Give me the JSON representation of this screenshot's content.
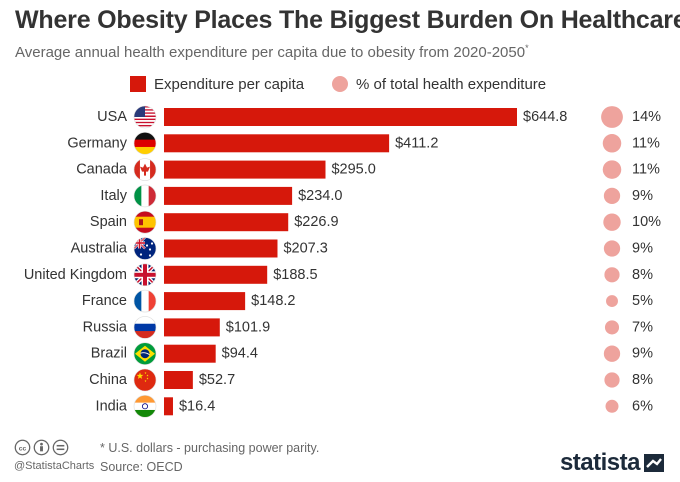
{
  "chart_data": {
    "type": "bar",
    "title": "Where Obesity Places The Biggest Burden On Healthcare",
    "subtitle": "Average annual health expenditure per capita due to obesity from 2020-2050",
    "subtitle_footnote_mark": "*",
    "orientation": "horizontal",
    "legend": [
      {
        "label": "Expenditure per capita",
        "color": "#d6180b"
      },
      {
        "label": "% of total health expenditure",
        "color": "#eea39d"
      }
    ],
    "categories": [
      "USA",
      "Germany",
      "Canada",
      "Italy",
      "Spain",
      "Australia",
      "United Kingdom",
      "France",
      "Russia",
      "Brazil",
      "China",
      "India"
    ],
    "series": [
      {
        "name": "Expenditure per capita",
        "values": [
          644.8,
          411.2,
          295.0,
          234.0,
          226.9,
          207.3,
          188.5,
          148.2,
          101.9,
          94.4,
          52.7,
          16.4
        ]
      },
      {
        "name": "% of total health expenditure",
        "values": [
          14,
          11,
          11,
          9,
          10,
          9,
          8,
          5,
          7,
          9,
          8,
          6
        ]
      }
    ],
    "value_labels": [
      "$644.8",
      "$411.2",
      "$295.0",
      "$234.0",
      "$226.9",
      "$207.3",
      "$188.5",
      "$148.2",
      "$101.9",
      "$94.4",
      "$52.7",
      "$16.4"
    ],
    "pct_labels": [
      "14%",
      "11%",
      "11%",
      "9%",
      "10%",
      "9%",
      "8%",
      "5%",
      "7%",
      "9%",
      "8%",
      "6%"
    ],
    "xlim": [
      0,
      644.8
    ],
    "grid": false
  },
  "footer": {
    "note": "* U.S. dollars - purchasing power parity.",
    "source": "Source: OECD",
    "handle": "@StatistaCharts",
    "brand": "statista"
  },
  "colors": {
    "bar": "#d6180b",
    "bubble": "#eea39d",
    "text": "#333333",
    "muted": "#666666"
  },
  "flags": [
    "usa-flag-icon",
    "germany-flag-icon",
    "canada-flag-icon",
    "italy-flag-icon",
    "spain-flag-icon",
    "australia-flag-icon",
    "uk-flag-icon",
    "france-flag-icon",
    "russia-flag-icon",
    "brazil-flag-icon",
    "china-flag-icon",
    "india-flag-icon"
  ]
}
